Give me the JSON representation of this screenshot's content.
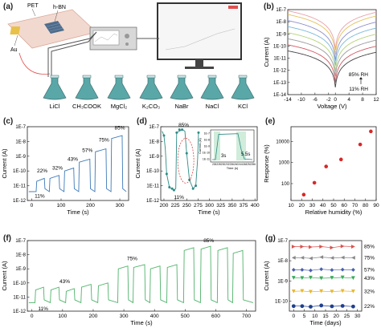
{
  "panel_labels": {
    "a": "(a)",
    "b": "(b)",
    "c": "(c)",
    "d": "(d)",
    "e": "(e)",
    "f": "(f)",
    "g": "(g)"
  },
  "panel_a": {
    "substrate_label": "PET",
    "sensor_label": "h-BN",
    "electrode_label": "Au",
    "salts": [
      "LiCl",
      "CH₃COOK",
      "MgCl₂",
      "K₂CO₃",
      "NaBr",
      "NaCl",
      "KCl"
    ]
  },
  "colors": {
    "blue": "#3d7ab8",
    "teal": "#2e8b86",
    "green": "#4fb36a",
    "red": "#d62828",
    "flask": "#5aa7a8"
  },
  "chart_data": [
    {
      "id": "b",
      "type": "line",
      "xlabel": "Voltage (V)",
      "ylabel": "Current (A)",
      "xticks": [
        "-14",
        "-10",
        "-6",
        "-2",
        "0",
        "4",
        "8",
        "12"
      ],
      "xtick_values": [
        -14,
        -10,
        -6,
        -2,
        0,
        4,
        8,
        12
      ],
      "yticks": [
        "1E-7",
        "1E-8",
        "1E-9",
        "1E-10",
        "1E-11",
        "1E-12",
        "1E-13",
        "1E-14"
      ],
      "ylog": [
        -7,
        -14
      ],
      "annotations": [
        "85% RH",
        "11% RH"
      ],
      "series": [
        {
          "color": "#e8a0a8",
          "edge": -7.1,
          "center": -10.3
        },
        {
          "color": "#e6c25a",
          "edge": -7.4,
          "center": -10.7
        },
        {
          "color": "#8c8fc9",
          "edge": -7.9,
          "center": -11.2
        },
        {
          "color": "#7ab8d8",
          "edge": -8.4,
          "center": -11.6
        },
        {
          "color": "#b4d27a",
          "edge": -8.9,
          "center": -12.1
        },
        {
          "color": "#9a9a9a",
          "edge": -9.4,
          "center": -12.5
        },
        {
          "color": "#d05860",
          "edge": -9.9,
          "center": -13.0
        },
        {
          "color": "#444444",
          "edge": -10.4,
          "center": -13.4
        }
      ]
    },
    {
      "id": "c",
      "type": "line",
      "xlabel": "Time (s)",
      "ylabel": "Current (A)",
      "xticks": [
        "0",
        "100",
        "200",
        "300"
      ],
      "xtick_values": [
        0,
        100,
        200,
        300
      ],
      "xlim": [
        -15,
        330
      ],
      "yticks": [
        "1E-7",
        "1E-8",
        "1E-9",
        "1E-10",
        "1E-11",
        "1E-12"
      ],
      "ylog": [
        -7,
        -12
      ],
      "base": -11.4,
      "pulses": [
        [
          15,
          45,
          -10.5
        ],
        [
          60,
          95,
          -10.3
        ],
        [
          110,
          145,
          -9.8
        ],
        [
          160,
          200,
          -9.2
        ],
        [
          215,
          255,
          -8.5
        ],
        [
          270,
          310,
          -7.6
        ]
      ],
      "labels": [
        "11%",
        "22%",
        "32%",
        "43%",
        "57%",
        "75%",
        "85%"
      ]
    },
    {
      "id": "d",
      "type": "line",
      "xlabel": "Time (s)",
      "ylabel": "Current (A)",
      "xticks": [
        "200",
        "225",
        "250",
        "275",
        "300",
        "325",
        "350",
        "375",
        "400"
      ],
      "xtick_values": [
        200,
        225,
        250,
        275,
        300,
        325,
        350,
        375,
        400
      ],
      "xlim": [
        193,
        405
      ],
      "yticks": [
        "1E-7",
        "1E-8",
        "1E-9",
        "1E-10",
        "1E-11",
        "1E-12"
      ],
      "ylog": [
        -7,
        -12
      ],
      "labels": [
        "85%",
        "11%"
      ],
      "inset": {
        "ylabel": "Current (A)",
        "yticks": [
          "1E-7",
          "1E-8",
          "1E-9",
          "1E-10",
          "1E-11"
        ],
        "xticks": [
          "226",
          "228",
          "230",
          "232",
          "236",
          "240",
          "244",
          "248",
          "252",
          "256"
        ],
        "xlabel": "Time (s)",
        "rise": "3s",
        "fall": "5.5s"
      }
    },
    {
      "id": "e",
      "type": "scatter",
      "xlabel": "Relative humidity (%)",
      "ylabel": "Response (%)",
      "xticks": [
        "10",
        "20",
        "30",
        "40",
        "50",
        "60",
        "70",
        "80",
        "90"
      ],
      "xtick_values": [
        10,
        20,
        30,
        40,
        50,
        60,
        70,
        80,
        90
      ],
      "xlim": [
        10,
        90
      ],
      "yticks": [
        "10000",
        "1000",
        "100"
      ],
      "ylog": [
        4.7,
        1.2
      ],
      "x": [
        22,
        32,
        43,
        57,
        75,
        85
      ],
      "y": [
        30,
        110,
        650,
        1400,
        7200,
        30000
      ]
    },
    {
      "id": "f",
      "type": "line",
      "xlabel": "Time (s)",
      "ylabel": "Current (A)",
      "xticks": [
        "0",
        "100",
        "200",
        "300",
        "400",
        "500",
        "600",
        "700"
      ],
      "xtick_values": [
        0,
        100,
        200,
        300,
        400,
        500,
        600,
        700
      ],
      "xlim": [
        -15,
        730
      ],
      "yticks": [
        "1E-7",
        "1E-8",
        "1E-9",
        "1E-10",
        "1E-11",
        "1E-12"
      ],
      "ylog": [
        -7,
        -12
      ],
      "base": -11.4,
      "pulses": [
        [
          10,
          40,
          -10.3
        ],
        [
          60,
          90,
          -10.3
        ],
        [
          110,
          140,
          -10.4
        ],
        [
          160,
          195,
          -10.1
        ],
        [
          215,
          250,
          -10.0
        ],
        [
          280,
          315,
          -8.8
        ],
        [
          330,
          370,
          -8.7
        ],
        [
          385,
          420,
          -8.8
        ],
        [
          440,
          475,
          -8.7
        ],
        [
          495,
          530,
          -7.5
        ],
        [
          550,
          585,
          -7.4
        ],
        [
          605,
          640,
          -7.5
        ],
        [
          655,
          690,
          -7.7
        ]
      ],
      "labels": [
        "11%",
        "43%",
        "75%",
        "85%"
      ]
    },
    {
      "id": "g",
      "type": "scatter",
      "xlabel": "Time (days)",
      "ylabel": "Current (A)",
      "xticks": [
        "0",
        "5",
        "10",
        "15",
        "20",
        "25",
        "30"
      ],
      "xtick_values": [
        0,
        5,
        10,
        15,
        20,
        25,
        30
      ],
      "xlim": [
        -2,
        32
      ],
      "yticks": [
        "1E-7",
        "1E-8",
        "1E-9",
        "1E-10"
      ],
      "ylog": [
        -6.8,
        -10.3
      ],
      "x": [
        0,
        4,
        8,
        13,
        18,
        23,
        28
      ],
      "series": [
        {
          "name": "85%",
          "color": "#d9534f",
          "marker": "tri-right",
          "values": [
            -7.1,
            -7.1,
            -7.12,
            -7.1,
            -7.15,
            -7.08,
            -7.1
          ]
        },
        {
          "name": "75%",
          "color": "#888888",
          "marker": "tri-left",
          "values": [
            -7.65,
            -7.65,
            -7.68,
            -7.62,
            -7.66,
            -7.64,
            -7.65
          ]
        },
        {
          "name": "57%",
          "color": "#4a5fae",
          "marker": "diamond",
          "values": [
            -8.25,
            -8.25,
            -8.28,
            -8.22,
            -8.26,
            -8.24,
            -8.25
          ]
        },
        {
          "name": "43%",
          "color": "#3aaa5a",
          "marker": "tri-down",
          "values": [
            -8.65,
            -8.66,
            -8.64,
            -8.67,
            -8.65,
            -8.63,
            -8.66
          ]
        },
        {
          "name": "32%",
          "color": "#e8b830",
          "marker": "tri-down",
          "values": [
            -9.32,
            -9.3,
            -9.34,
            -9.31,
            -9.33,
            -9.3,
            -9.32
          ]
        },
        {
          "name": "22%",
          "color": "#1f3f8f",
          "marker": "circle",
          "values": [
            -10.05,
            -10.05,
            -10.08,
            -10.02,
            -10.06,
            -10.04,
            -10.07
          ]
        }
      ]
    }
  ]
}
